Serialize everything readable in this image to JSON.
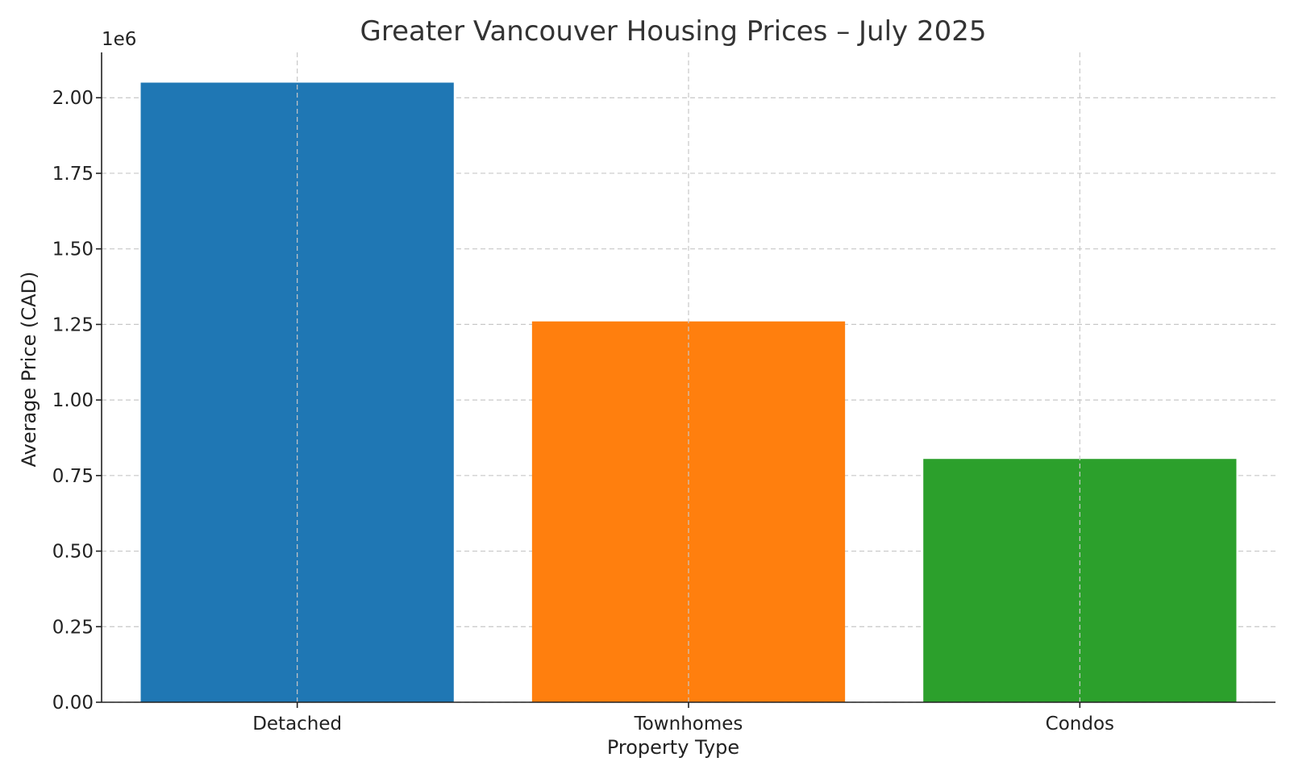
{
  "chart_data": {
    "type": "bar",
    "title": "Greater Vancouver Housing Prices – July 2025",
    "xlabel": "Property Type",
    "ylabel": "Average Price (CAD)",
    "y_offset_label": "1e6",
    "categories": [
      "Detached",
      "Townhomes",
      "Condos"
    ],
    "values": [
      2050000,
      1260000,
      805000
    ],
    "colors": [
      "#1f77b4",
      "#ff7f0e",
      "#2ca02c"
    ],
    "ylim": [
      0,
      2150000
    ],
    "yticks": [
      0,
      250000,
      500000,
      750000,
      1000000,
      1250000,
      1500000,
      1750000,
      2000000
    ],
    "ytick_labels": [
      "0.00",
      "0.25",
      "0.50",
      "0.75",
      "1.00",
      "1.25",
      "1.50",
      "1.75",
      "2.00"
    ],
    "grid": true,
    "legend": "none"
  }
}
